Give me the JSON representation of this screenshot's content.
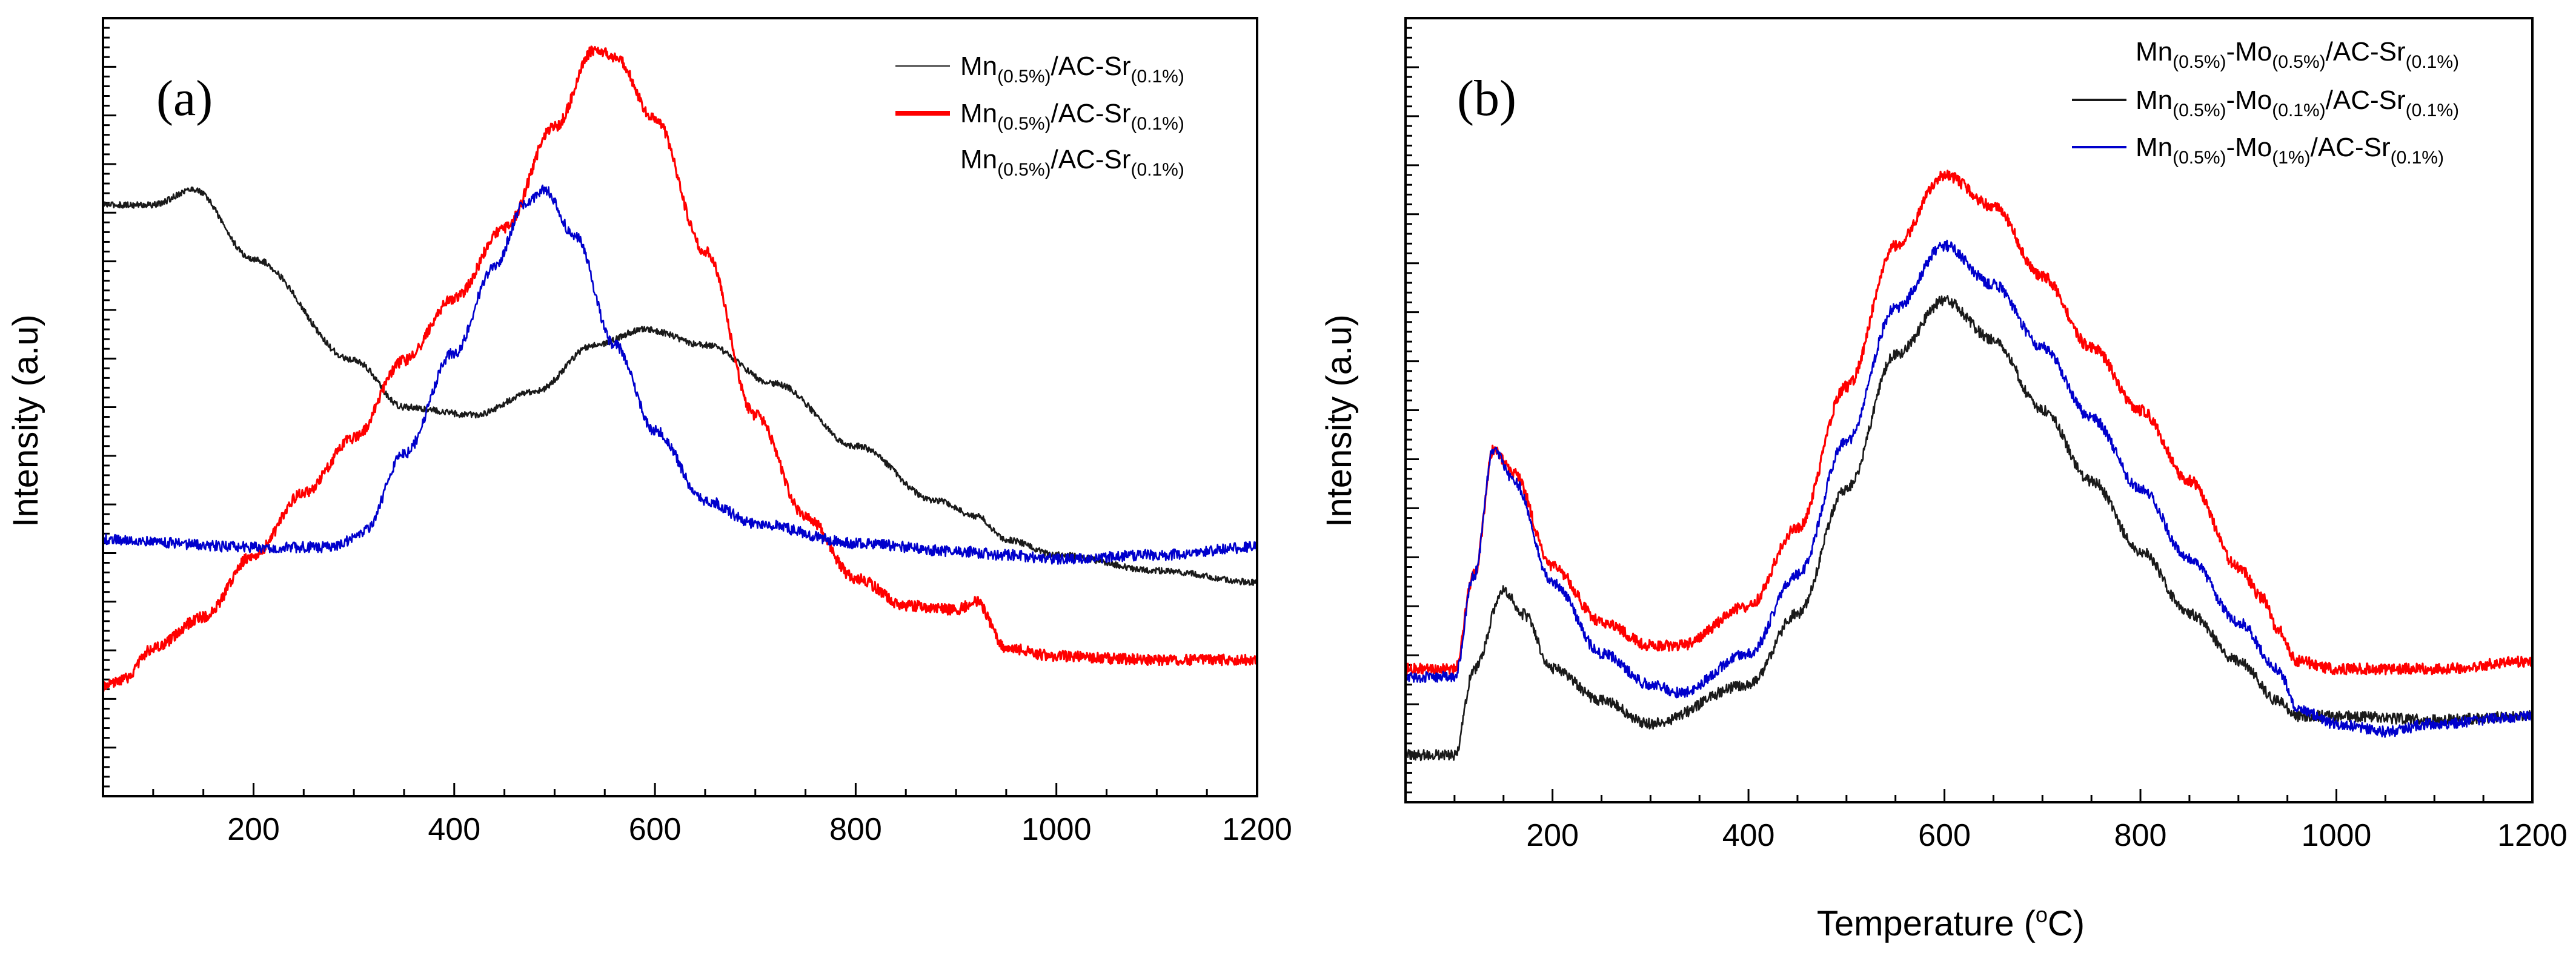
{
  "chart_data": [
    {
      "type": "line",
      "panel_label": "(a)",
      "xlabel": "",
      "ylabel": "Intensity (a.u)",
      "xlim": [
        50,
        1200
      ],
      "ylim": [
        0,
        100
      ],
      "xticks": [
        200,
        400,
        600,
        800,
        1000,
        1200
      ],
      "y_tick_labels_shown": false,
      "legend_position": "top-right",
      "series": [
        {
          "name": "Mn(0.5%)/AC-Sr(0.1%)",
          "label_parts": {
            "a": "Mn",
            "b": "(0.5%)",
            "c": "/AC-Sr",
            "d": "(0.1%)"
          },
          "color": "#1a1a1a",
          "noise": 0.4,
          "x": [
            50,
            100,
            140,
            200,
            300,
            350,
            420,
            480,
            540,
            590,
            650,
            720,
            800,
            880,
            920,
            950,
            1000,
            1100,
            1200
          ],
          "y": [
            76,
            76,
            78,
            69,
            56,
            50,
            49,
            52,
            58,
            60,
            58,
            53,
            45,
            38,
            36,
            33,
            31,
            29,
            27.5
          ]
        },
        {
          "name": "Mn(0.5%)/AC-Sr(0.1%)",
          "label_parts": {
            "a": "Mn",
            "b": "(0.5%)",
            "c": "/AC-Sr",
            "d": "(0.1%)"
          },
          "color": "#ff0000",
          "noise": 0.7,
          "x": [
            50,
            70,
            100,
            150,
            200,
            250,
            300,
            350,
            400,
            450,
            500,
            540,
            560,
            600,
            650,
            700,
            750,
            800,
            850,
            900,
            920,
            950,
            1000,
            1100,
            1200
          ],
          "y": [
            14,
            15,
            19,
            23,
            31,
            39,
            46,
            56,
            64,
            73,
            86,
            96,
            95,
            87,
            70,
            49,
            36,
            28,
            24.5,
            24,
            25,
            19,
            18,
            17.5,
            17.5
          ]
        },
        {
          "name": "Mn(0.5%)/AC-Sr(0.1%)",
          "label_parts": {
            "a": "Mn",
            "b": "(0.5%)",
            "c": "/AC-Sr",
            "d": "(0.1%)"
          },
          "color": "#0000cc",
          "noise": 0.7,
          "x": [
            50,
            200,
            280,
            310,
            350,
            400,
            440,
            470,
            490,
            520,
            560,
            600,
            650,
            700,
            800,
            900,
            950,
            1000,
            1100,
            1200
          ],
          "y": [
            33,
            32,
            32,
            34,
            44,
            57,
            68,
            76,
            78,
            72,
            58,
            47,
            38,
            35,
            32.5,
            31.5,
            31,
            30.5,
            31,
            32
          ]
        }
      ]
    },
    {
      "type": "line",
      "panel_label": "(b)",
      "xlabel_parts": {
        "a": "Temperature (",
        "b": "o",
        "c": "C)"
      },
      "ylabel": "Intensity (a.u)",
      "xlim": [
        50,
        1200
      ],
      "ylim": [
        0,
        100
      ],
      "xticks": [
        200,
        400,
        600,
        800,
        1000,
        1200
      ],
      "y_tick_labels_shown": false,
      "legend_position": "top-right",
      "series": [
        {
          "name": "Mn(0.5%)-Mo(0.5%)/AC-Sr(0.1%)",
          "label_parts": {
            "a": "Mn",
            "b": "(0.5%)",
            "c": "-Mo",
            "d": "(0.5%)",
            "e": "/AC-Sr",
            "f": "(0.1%)"
          },
          "color": "#ff0000",
          "noise": 0.7,
          "x": [
            50,
            100,
            120,
            140,
            160,
            200,
            250,
            300,
            330,
            400,
            450,
            500,
            550,
            600,
            650,
            700,
            750,
            800,
            850,
            900,
            925,
            940,
            960,
            1000,
            1100,
            1200
          ],
          "y": [
            17,
            17,
            29,
            45,
            42,
            30,
            23,
            20,
            20,
            25,
            35,
            53,
            71,
            80,
            76,
            67,
            58,
            50,
            41,
            30,
            26,
            22,
            18,
            17,
            17,
            18
          ]
        },
        {
          "name": "Mn(0.5%)-Mo(0.1%)/AC-Sr(0.1%)",
          "label_parts": {
            "a": "Mn",
            "b": "(0.5%)",
            "c": "-Mo",
            "d": "(0.1%)",
            "e": "/AC-Sr",
            "f": "(0.1%)"
          },
          "color": "#1a1a1a",
          "noise": 0.7,
          "x": [
            50,
            100,
            120,
            150,
            170,
            200,
            250,
            300,
            400,
            450,
            500,
            550,
            600,
            650,
            700,
            750,
            800,
            850,
            900,
            940,
            960,
            1000,
            1100,
            1200
          ],
          "y": [
            6,
            6,
            17,
            27,
            24,
            17,
            13,
            10,
            15,
            24,
            40,
            57,
            64,
            59,
            50,
            41,
            32,
            24,
            18,
            13,
            11,
            11,
            10.5,
            11
          ]
        },
        {
          "name": "Mn(0.5%)-Mo(1%)/AC-Sr(0.1%)",
          "label_parts": {
            "a": "Mn",
            "b": "(0.5%)",
            "c": "-Mo",
            "d": "(1%)",
            "e": "/AC-Sr",
            "f": "(0.1%)"
          },
          "color": "#0000cc",
          "noise": 0.7,
          "x": [
            50,
            100,
            120,
            140,
            160,
            200,
            250,
            300,
            330,
            400,
            450,
            500,
            550,
            600,
            650,
            700,
            750,
            800,
            850,
            900,
            940,
            960,
            1000,
            1050,
            1100,
            1200
          ],
          "y": [
            16,
            16,
            29,
            45,
            41,
            28,
            19,
            15,
            14,
            19,
            29,
            46,
            63,
            71,
            66,
            58,
            49,
            40,
            31,
            23,
            17,
            12,
            10,
            9,
            10,
            11
          ]
        }
      ]
    }
  ]
}
